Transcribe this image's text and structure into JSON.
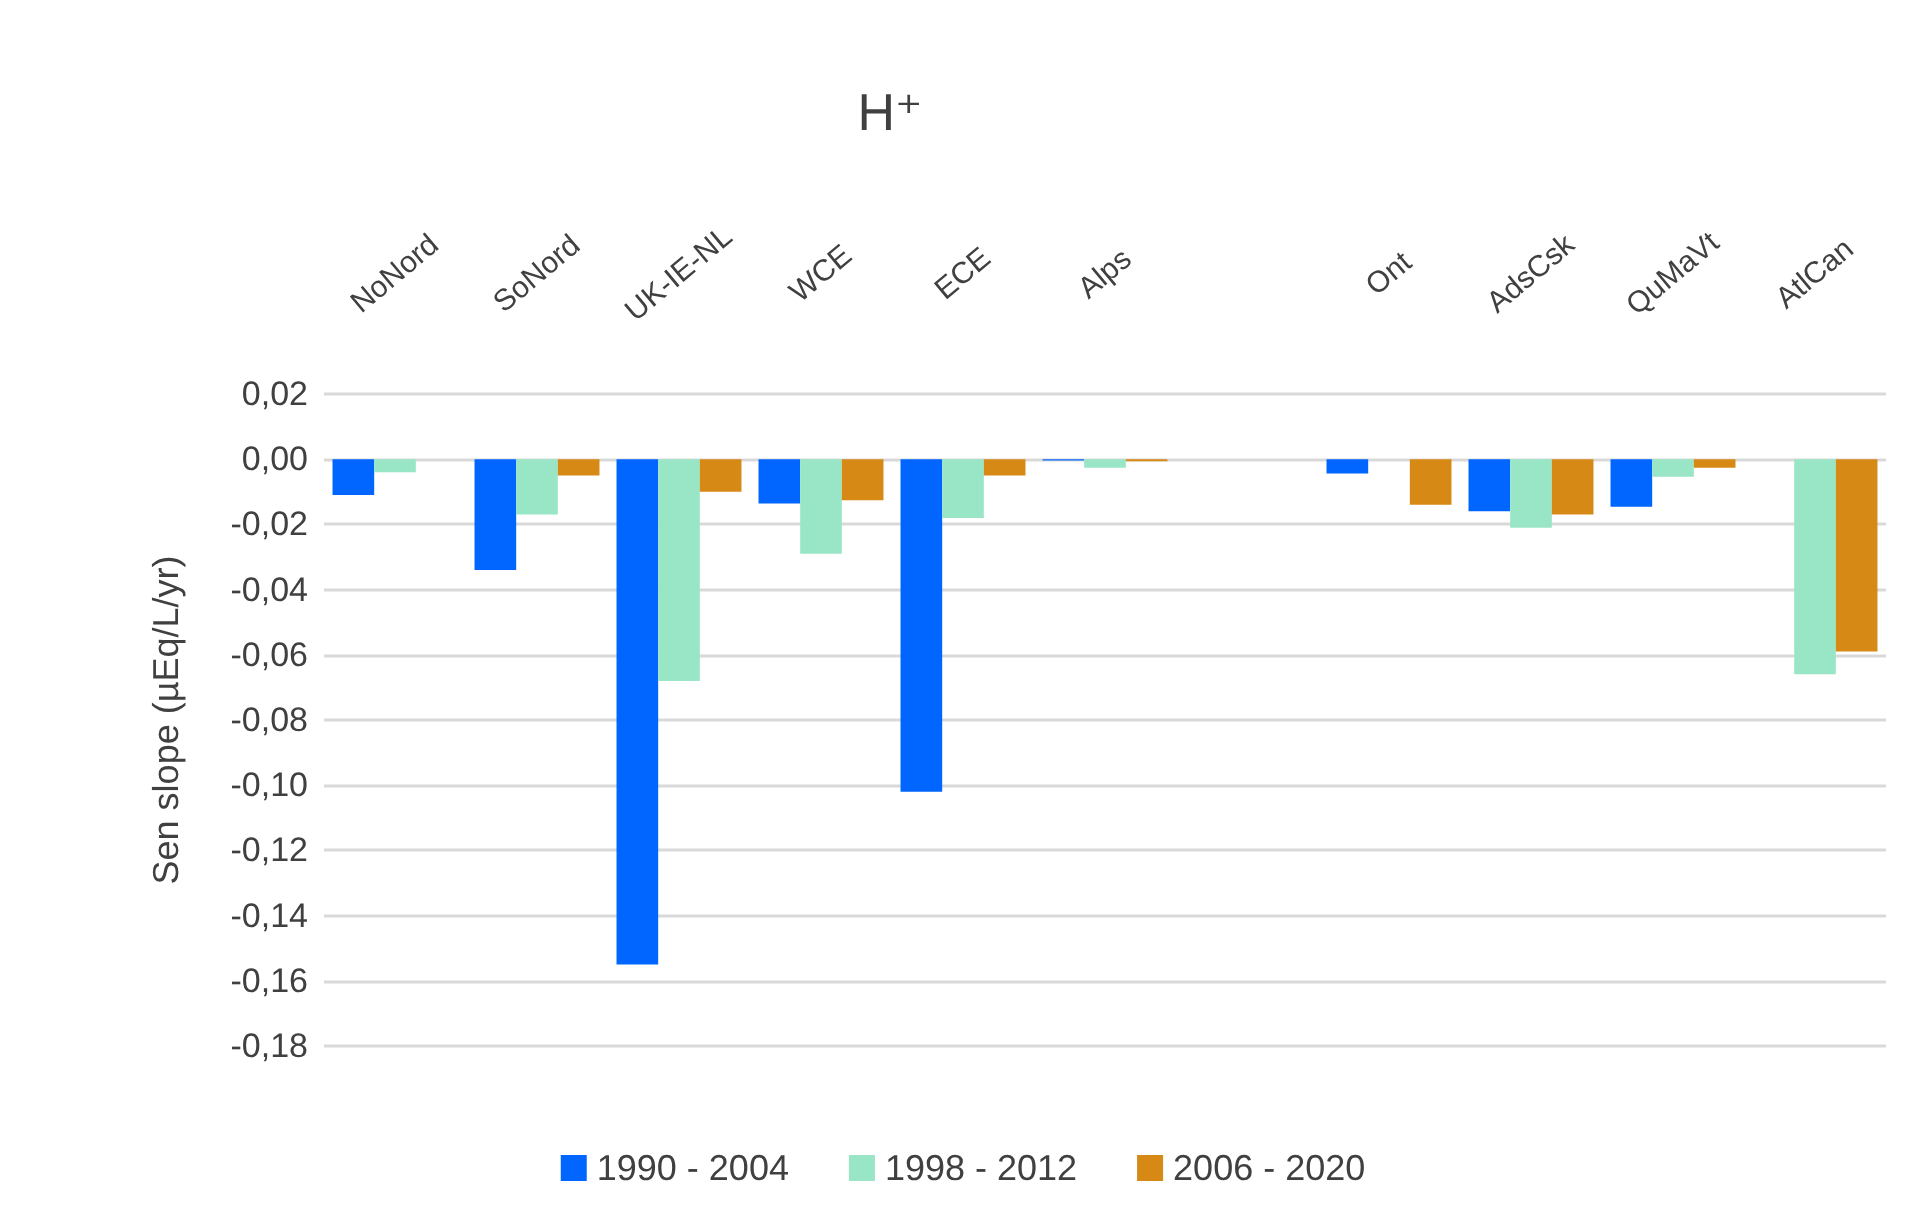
{
  "chart_data": {
    "type": "bar",
    "title": "H⁺",
    "ylabel": "Sen slope (µEq/L/yr)",
    "categories": [
      "NoNord",
      "SoNord",
      "UK-IE-NL",
      "WCE",
      "ECE",
      "Alps",
      null,
      "Ont",
      "AdsCsk",
      "QuMaVt",
      "AtlCan"
    ],
    "series": [
      {
        "name": "1990 - 2004",
        "color": "#0066ff",
        "values": [
          -0.011,
          -0.034,
          -0.155,
          -0.0136,
          -0.102,
          -0.0004,
          null,
          -0.0044,
          -0.016,
          -0.0146,
          null
        ]
      },
      {
        "name": "1998 - 2012",
        "color": "#99e6c6",
        "values": [
          -0.004,
          -0.017,
          -0.068,
          -0.029,
          -0.018,
          -0.0026,
          null,
          null,
          -0.021,
          -0.0054,
          -0.066
        ]
      },
      {
        "name": "2006 - 2020",
        "color": "#d78915",
        "values": [
          null,
          -0.005,
          -0.01,
          -0.0126,
          -0.005,
          -0.0006,
          null,
          -0.014,
          -0.017,
          -0.0026,
          -0.059
        ]
      }
    ],
    "ylim": [
      -0.18,
      0.02
    ],
    "yticks": [
      {
        "value": 0.02,
        "label": "0,02"
      },
      {
        "value": 0,
        "label": "0,00"
      },
      {
        "value": -0.02,
        "label": "-0,02"
      },
      {
        "value": -0.04,
        "label": "-0,04"
      },
      {
        "value": -0.06,
        "label": "-0,06"
      },
      {
        "value": -0.08,
        "label": "-0,08"
      },
      {
        "value": -0.1,
        "label": "-0,10"
      },
      {
        "value": -0.12,
        "label": "-0,12"
      },
      {
        "value": -0.14,
        "label": "-0,14"
      },
      {
        "value": -0.16,
        "label": "-0,16"
      },
      {
        "value": -0.18,
        "label": "-0,18"
      }
    ],
    "grid": "y",
    "legend": "bottom"
  }
}
